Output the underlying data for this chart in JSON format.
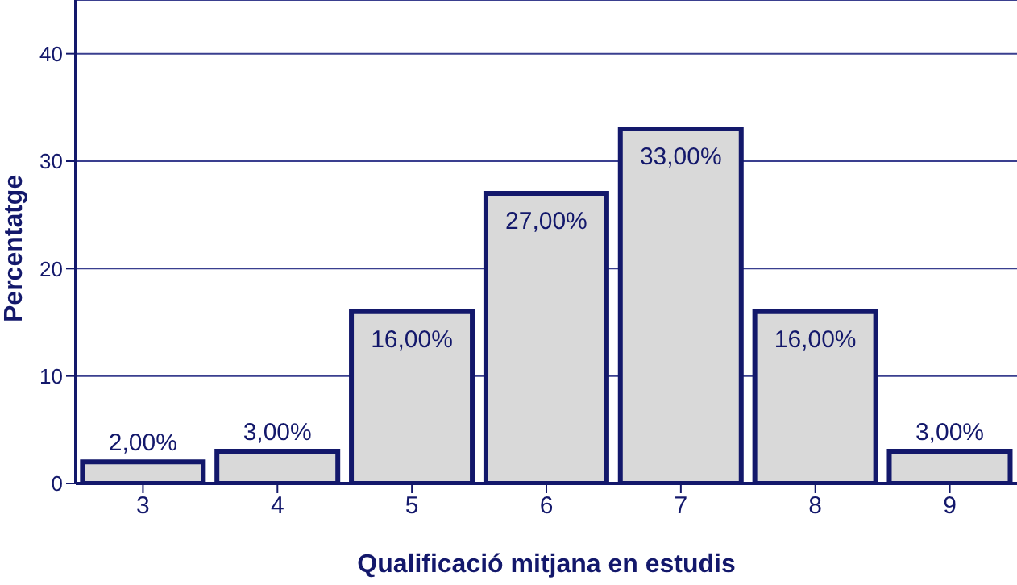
{
  "chart_data": {
    "type": "bar",
    "xlabel": "Qualificació mitjana en estudis",
    "ylabel": "Percentatge",
    "categories": [
      "3",
      "4",
      "5",
      "6",
      "7",
      "8",
      "9"
    ],
    "values": [
      2,
      3,
      16,
      27,
      33,
      16,
      3
    ],
    "value_labels": [
      "2,00%",
      "3,00%",
      "16,00%",
      "27,00%",
      "33,00%",
      "16,00%",
      "3,00%"
    ],
    "color": "#d9d9d9",
    "ylim": [
      0,
      45
    ],
    "yticks": [
      0,
      10,
      20,
      30,
      40
    ],
    "grid": "y"
  }
}
